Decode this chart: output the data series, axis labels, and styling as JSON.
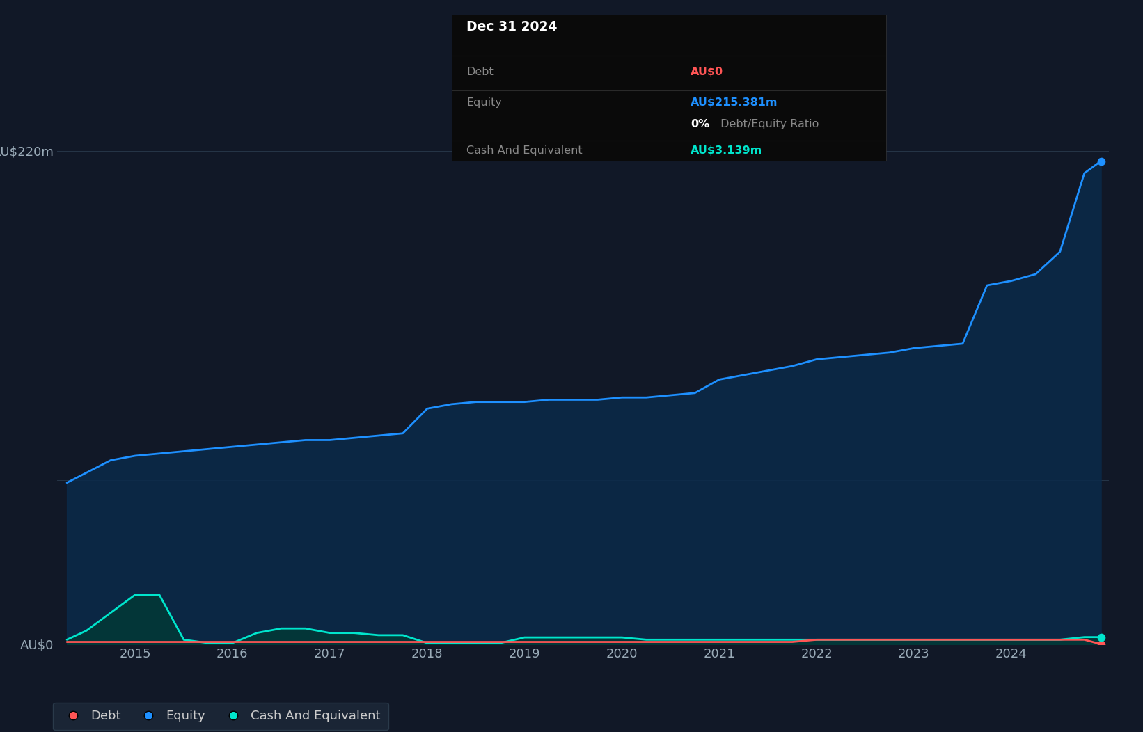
{
  "bg_color": "#111827",
  "plot_bg_color": "#111827",
  "grid_color": "#263547",
  "equity_dates": [
    2014.3,
    2014.75,
    2015.0,
    2015.25,
    2015.5,
    2015.75,
    2016.0,
    2016.25,
    2016.5,
    2016.75,
    2017.0,
    2017.25,
    2017.5,
    2017.75,
    2018.0,
    2018.25,
    2018.5,
    2018.75,
    2019.0,
    2019.25,
    2019.5,
    2019.75,
    2020.0,
    2020.25,
    2020.5,
    2020.75,
    2021.0,
    2021.25,
    2021.5,
    2021.75,
    2022.0,
    2022.25,
    2022.5,
    2022.75,
    2023.0,
    2023.25,
    2023.5,
    2023.75,
    2024.0,
    2024.25,
    2024.5,
    2024.75,
    2024.92
  ],
  "equity_values": [
    72,
    82,
    84,
    85,
    86,
    87,
    88,
    89,
    90,
    91,
    91,
    92,
    93,
    94,
    105,
    107,
    108,
    108,
    108,
    109,
    109,
    109,
    110,
    110,
    111,
    112,
    118,
    120,
    122,
    124,
    127,
    128,
    129,
    130,
    132,
    133,
    134,
    160,
    162,
    165,
    175,
    210,
    215.381
  ],
  "debt_dates": [
    2014.3,
    2014.75,
    2015.0,
    2015.25,
    2015.5,
    2015.75,
    2016.0,
    2016.25,
    2016.5,
    2016.75,
    2017.0,
    2017.25,
    2017.5,
    2017.75,
    2018.0,
    2018.25,
    2018.5,
    2018.75,
    2019.0,
    2019.25,
    2019.5,
    2019.75,
    2020.0,
    2020.25,
    2020.5,
    2020.75,
    2021.0,
    2021.25,
    2021.5,
    2021.75,
    2022.0,
    2022.25,
    2022.5,
    2022.75,
    2023.0,
    2023.25,
    2023.5,
    2023.75,
    2024.0,
    2024.25,
    2024.5,
    2024.75,
    2024.92
  ],
  "debt_values": [
    1,
    1,
    1,
    1,
    1,
    1,
    1,
    1,
    1,
    1,
    1,
    1,
    1,
    1,
    1,
    1,
    1,
    1,
    1,
    1,
    1,
    1,
    1,
    1,
    1,
    1,
    1,
    1,
    1,
    1,
    2,
    2,
    2,
    2,
    2,
    2,
    2,
    2,
    2,
    2,
    2,
    2,
    0
  ],
  "cash_dates": [
    2014.3,
    2014.5,
    2014.75,
    2015.0,
    2015.1,
    2015.25,
    2015.5,
    2015.75,
    2016.0,
    2016.25,
    2016.5,
    2016.75,
    2017.0,
    2017.25,
    2017.5,
    2017.75,
    2018.0,
    2018.25,
    2018.5,
    2018.75,
    2019.0,
    2019.25,
    2019.5,
    2019.75,
    2020.0,
    2020.25,
    2020.5,
    2020.75,
    2021.0,
    2021.25,
    2021.5,
    2021.75,
    2022.0,
    2022.25,
    2022.5,
    2022.75,
    2023.0,
    2023.25,
    2023.5,
    2023.75,
    2024.0,
    2024.25,
    2024.5,
    2024.75,
    2024.92
  ],
  "cash_values": [
    2,
    6,
    14,
    22,
    22,
    22,
    2,
    0.5,
    0.5,
    5,
    7,
    7,
    5,
    5,
    4,
    4,
    0.5,
    0.5,
    0.5,
    0.5,
    3,
    3,
    3,
    3,
    3,
    2,
    2,
    2,
    2,
    2,
    2,
    2,
    2,
    2,
    2,
    2,
    2,
    2,
    2,
    2,
    2,
    2,
    2,
    3.139,
    3.139
  ],
  "equity_color": "#1e90ff",
  "debt_color": "#ff5555",
  "cash_color": "#00e5cc",
  "fill_equity_alpha": 0.85,
  "fill_cash_alpha": 0.7,
  "ytick_labels": [
    "AU$0",
    "AU$220m"
  ],
  "ytick_values": [
    0,
    220
  ],
  "ytick_minor_values": [
    73,
    147
  ],
  "xtick_labels": [
    "2015",
    "2016",
    "2017",
    "2018",
    "2019",
    "2020",
    "2021",
    "2022",
    "2023",
    "2024"
  ],
  "xtick_values": [
    2015,
    2016,
    2017,
    2018,
    2019,
    2020,
    2021,
    2022,
    2023,
    2024
  ],
  "xlim": [
    2014.2,
    2025.0
  ],
  "ylim": [
    0,
    235
  ],
  "tooltip_title": "Dec 31 2024",
  "tooltip_debt_label": "Debt",
  "tooltip_debt_value": "AU$0",
  "tooltip_equity_label": "Equity",
  "tooltip_equity_value": "AU$215.381m",
  "tooltip_ratio_bold": "0%",
  "tooltip_ratio_normal": " Debt/Equity Ratio",
  "tooltip_cash_label": "Cash And Equivalent",
  "tooltip_cash_value": "AU$3.139m",
  "legend_items": [
    "Debt",
    "Equity",
    "Cash And Equivalent"
  ],
  "legend_colors": [
    "#ff5555",
    "#1e90ff",
    "#00e5cc"
  ],
  "line_width": 2.0,
  "dot_size": 55
}
